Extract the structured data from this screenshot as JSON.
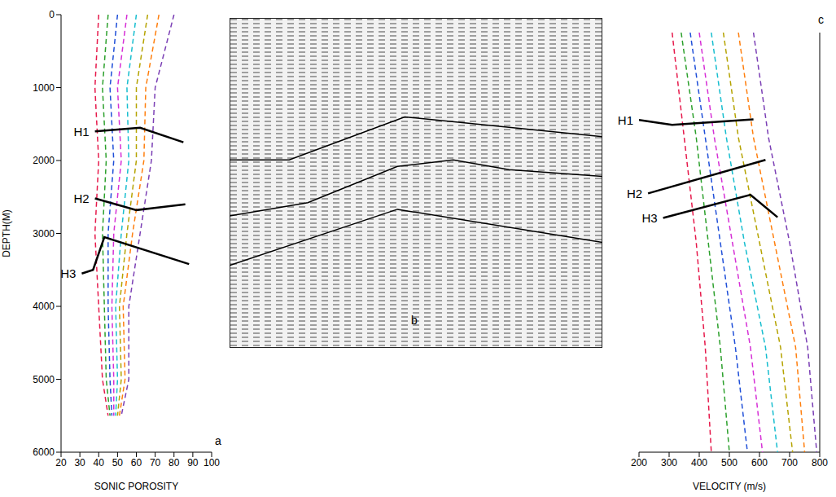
{
  "chart_data": [
    {
      "type": "line",
      "panel_label": "a",
      "xlabel": "SONIC POROSITY",
      "ylabel": "DEPTH(M)",
      "xlim": [
        20,
        100
      ],
      "xticks": [
        20,
        30,
        40,
        50,
        60,
        70,
        80,
        90,
        100
      ],
      "ylim": [
        0,
        6000
      ],
      "yticks": [
        0,
        1000,
        2000,
        3000,
        4000,
        5000,
        6000
      ],
      "series": [
        {
          "color": "#e6194b",
          "line_style": "dashed",
          "x": [
            40,
            38,
            40,
            38,
            40,
            42,
            45
          ],
          "y": [
            0,
            1000,
            2000,
            3000,
            4000,
            5000,
            5500
          ]
        },
        {
          "color": "#2ca02c",
          "line_style": "dashed",
          "x": [
            45,
            42,
            44,
            42,
            43,
            44,
            46
          ],
          "y": [
            0,
            1000,
            2000,
            3000,
            4000,
            5000,
            5500
          ]
        },
        {
          "color": "#1f4fd8",
          "line_style": "dashed",
          "x": [
            50,
            46,
            48,
            45,
            45,
            46,
            47
          ],
          "y": [
            0,
            1000,
            2000,
            3000,
            4000,
            5000,
            5500
          ]
        },
        {
          "color": "#d62fd6",
          "line_style": "dashed",
          "x": [
            55,
            50,
            52,
            48,
            47,
            48,
            48
          ],
          "y": [
            0,
            1000,
            2000,
            3000,
            4000,
            5000,
            5500
          ]
        },
        {
          "color": "#17becf",
          "line_style": "dashed",
          "x": [
            60,
            55,
            56,
            52,
            49,
            50,
            49
          ],
          "y": [
            0,
            1000,
            2000,
            3000,
            4000,
            5000,
            5500
          ]
        },
        {
          "color": "#b5a300",
          "line_style": "dashed",
          "x": [
            66,
            60,
            60,
            55,
            51,
            52,
            50
          ],
          "y": [
            0,
            1000,
            2000,
            3000,
            4000,
            5000,
            5500
          ]
        },
        {
          "color": "#ff7f0e",
          "line_style": "dashed",
          "x": [
            72,
            65,
            64,
            58,
            53,
            54,
            51
          ],
          "y": [
            0,
            1000,
            2000,
            3000,
            4000,
            5000,
            5500
          ]
        },
        {
          "color": "#7b3fb5",
          "line_style": "dashed",
          "x": [
            80,
            70,
            68,
            62,
            56,
            56,
            52
          ],
          "y": [
            0,
            1000,
            2000,
            3000,
            4000,
            5000,
            5500
          ]
        },
        {
          "name": "H1",
          "color": "#000000",
          "line_style": "solid",
          "x": [
            38,
            62,
            85
          ],
          "y": [
            1600,
            1550,
            1750
          ]
        },
        {
          "name": "H2",
          "color": "#000000",
          "line_style": "solid",
          "x": [
            38,
            60,
            86
          ],
          "y": [
            2520,
            2680,
            2600
          ]
        },
        {
          "name": "H3",
          "color": "#000000",
          "line_style": "solid",
          "x": [
            31,
            37,
            43,
            88
          ],
          "y": [
            3550,
            3500,
            3050,
            3420
          ]
        }
      ]
    },
    {
      "type": "line",
      "panel_label": "b",
      "tick_labels": false,
      "xlim": [
        0,
        100
      ],
      "ylim": [
        0,
        100
      ],
      "series": [
        {
          "color": "#000000",
          "line_style": "solid",
          "x": [
            0,
            16,
            47,
            100
          ],
          "y": [
            43,
            43,
            30,
            36
          ]
        },
        {
          "color": "#000000",
          "line_style": "solid",
          "x": [
            0,
            21,
            45,
            60,
            75,
            100
          ],
          "y": [
            60,
            56,
            45,
            43,
            46,
            48
          ]
        },
        {
          "color": "#000000",
          "line_style": "solid",
          "x": [
            0,
            45,
            100
          ],
          "y": [
            75,
            58,
            68
          ]
        }
      ]
    },
    {
      "type": "line",
      "panel_label": "c",
      "xlabel": "VELOCITY (m/s)",
      "tick_labels": "x",
      "xlim": [
        200,
        800
      ],
      "xticks": [
        200,
        300,
        400,
        500,
        600,
        700,
        800
      ],
      "ylim": [
        0,
        6000
      ],
      "series": [
        {
          "color": "#e6194b",
          "line_style": "dashed",
          "x": [
            310,
            350,
            390,
            420,
            440
          ],
          "y": [
            0,
            1500,
            3000,
            4500,
            6000
          ]
        },
        {
          "color": "#2ca02c",
          "line_style": "dashed",
          "x": [
            340,
            390,
            430,
            470,
            500
          ],
          "y": [
            0,
            1500,
            3000,
            4500,
            6000
          ]
        },
        {
          "color": "#1f4fd8",
          "line_style": "dashed",
          "x": [
            370,
            420,
            470,
            520,
            560
          ],
          "y": [
            0,
            1500,
            3000,
            4500,
            6000
          ]
        },
        {
          "color": "#d62fd6",
          "line_style": "dashed",
          "x": [
            400,
            450,
            510,
            570,
            610
          ],
          "y": [
            0,
            1500,
            3000,
            4500,
            6000
          ]
        },
        {
          "color": "#17becf",
          "line_style": "dashed",
          "x": [
            440,
            490,
            550,
            620,
            660
          ],
          "y": [
            0,
            1500,
            3000,
            4500,
            6000
          ]
        },
        {
          "color": "#b5a300",
          "line_style": "dashed",
          "x": [
            480,
            530,
            600,
            670,
            710
          ],
          "y": [
            0,
            1500,
            3000,
            4500,
            6000
          ]
        },
        {
          "color": "#ff7f0e",
          "line_style": "dashed",
          "x": [
            530,
            580,
            650,
            720,
            750
          ],
          "y": [
            0,
            1500,
            3000,
            4500,
            6000
          ]
        },
        {
          "color": "#7b3fb5",
          "line_style": "dashed",
          "x": [
            580,
            630,
            700,
            760,
            790
          ],
          "y": [
            0,
            1500,
            3000,
            4500,
            6000
          ]
        },
        {
          "name": "H1",
          "color": "#000000",
          "line_style": "solid",
          "x": [
            200,
            310,
            580
          ],
          "y": [
            1250,
            1320,
            1240
          ]
        },
        {
          "name": "H2",
          "color": "#000000",
          "line_style": "solid",
          "x": [
            230,
            620
          ],
          "y": [
            2300,
            1820
          ]
        },
        {
          "name": "H3",
          "color": "#000000",
          "line_style": "solid",
          "x": [
            280,
            570,
            660
          ],
          "y": [
            2650,
            2320,
            2640
          ]
        }
      ]
    }
  ]
}
